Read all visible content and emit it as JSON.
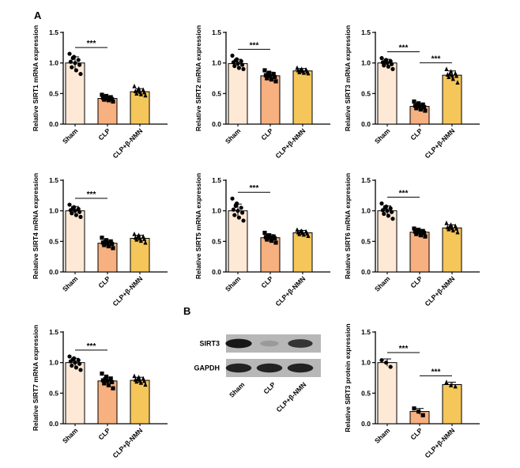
{
  "panel_labels": {
    "a": "A",
    "b": "B"
  },
  "colors": {
    "sham": "#fde9d6",
    "clp": "#f7b07f",
    "nmn": "#f5c75a",
    "axis": "#000000"
  },
  "chart_data": [
    {
      "type": "bar",
      "id": "sirt1",
      "ylabel": "Relative SIRT1 mRNA expression",
      "categories": [
        "Sham",
        "CLP",
        "CLP+β-NMN"
      ],
      "values": [
        1.0,
        0.42,
        0.53
      ],
      "errors": [
        0.1,
        0.04,
        0.05
      ],
      "ylim": [
        0,
        1.5
      ],
      "yticks": [
        "0.0",
        "0.5",
        "1.0",
        "1.5"
      ],
      "point_shapes": [
        "circle",
        "square",
        "triangle"
      ],
      "points": [
        [
          1.15,
          1.1,
          1.05,
          1.02,
          1.0,
          0.97,
          0.93,
          0.88,
          0.82,
          1.08
        ],
        [
          0.48,
          0.46,
          0.44,
          0.43,
          0.42,
          0.41,
          0.4,
          0.39,
          0.37,
          0.45
        ],
        [
          0.62,
          0.58,
          0.56,
          0.54,
          0.53,
          0.52,
          0.5,
          0.49,
          0.47,
          0.55
        ]
      ],
      "significance": [
        {
          "from": 0,
          "to": 1,
          "label": "***"
        }
      ]
    },
    {
      "type": "bar",
      "id": "sirt2",
      "ylabel": "Relative SIRT2 mRNA expression",
      "categories": [
        "Sham",
        "CLP",
        "CLP+β-NMN"
      ],
      "values": [
        0.99,
        0.79,
        0.87
      ],
      "errors": [
        0.07,
        0.06,
        0.04
      ],
      "ylim": [
        0,
        1.5
      ],
      "yticks": [
        "0.0",
        "0.5",
        "1.0",
        "1.5"
      ],
      "point_shapes": [
        "circle",
        "square",
        "triangle"
      ],
      "points": [
        [
          1.12,
          1.06,
          1.03,
          1.01,
          0.99,
          0.97,
          0.95,
          0.92,
          0.9,
          1.04
        ],
        [
          0.88,
          0.84,
          0.82,
          0.8,
          0.79,
          0.77,
          0.75,
          0.73,
          0.7,
          0.81
        ],
        [
          0.92,
          0.9,
          0.89,
          0.88,
          0.87,
          0.86,
          0.85,
          0.84,
          0.83,
          0.88
        ]
      ],
      "significance": [
        {
          "from": 0,
          "to": 1,
          "label": "***"
        }
      ]
    },
    {
      "type": "bar",
      "id": "sirt3",
      "ylabel": "Relative SIRT3 mRNA expression",
      "categories": [
        "Sham",
        "CLP",
        "CLP+β-NMN"
      ],
      "values": [
        1.0,
        0.29,
        0.8
      ],
      "errors": [
        0.06,
        0.05,
        0.07
      ],
      "ylim": [
        0,
        1.5
      ],
      "yticks": [
        "0.0",
        "0.5",
        "1.0",
        "1.5"
      ],
      "point_shapes": [
        "circle",
        "square",
        "triangle"
      ],
      "points": [
        [
          1.08,
          1.05,
          1.03,
          1.01,
          1.0,
          0.98,
          0.96,
          0.94,
          0.9,
          1.02
        ],
        [
          0.37,
          0.34,
          0.32,
          0.3,
          0.29,
          0.28,
          0.26,
          0.24,
          0.22,
          0.31
        ],
        [
          0.9,
          0.86,
          0.83,
          0.81,
          0.8,
          0.79,
          0.77,
          0.74,
          0.68,
          0.82
        ]
      ],
      "significance": [
        {
          "from": 0,
          "to": 1,
          "label": "***"
        },
        {
          "from": 1,
          "to": 2,
          "label": "***"
        }
      ]
    },
    {
      "type": "bar",
      "id": "sirt4",
      "ylabel": "Relative SIRT4 mRNA expression",
      "categories": [
        "Sham",
        "CLP",
        "CLP+β-NMN"
      ],
      "values": [
        1.0,
        0.47,
        0.55
      ],
      "errors": [
        0.07,
        0.05,
        0.05
      ],
      "ylim": [
        0,
        1.5
      ],
      "yticks": [
        "0.0",
        "0.5",
        "1.0",
        "1.5"
      ],
      "point_shapes": [
        "circle",
        "square",
        "triangle"
      ],
      "points": [
        [
          1.1,
          1.06,
          1.03,
          1.01,
          1.0,
          0.98,
          0.96,
          0.93,
          0.9,
          1.04
        ],
        [
          0.56,
          0.52,
          0.5,
          0.48,
          0.47,
          0.46,
          0.44,
          0.42,
          0.39,
          0.49
        ],
        [
          0.62,
          0.6,
          0.58,
          0.56,
          0.55,
          0.54,
          0.53,
          0.51,
          0.48,
          0.57
        ]
      ],
      "significance": [
        {
          "from": 0,
          "to": 1,
          "label": "***"
        }
      ]
    },
    {
      "type": "bar",
      "id": "sirt5",
      "ylabel": "Relative SIRT5 mRNA expression",
      "categories": [
        "Sham",
        "CLP",
        "CLP+β-NMN"
      ],
      "values": [
        1.0,
        0.56,
        0.64
      ],
      "errors": [
        0.11,
        0.05,
        0.04
      ],
      "ylim": [
        0,
        1.5
      ],
      "yticks": [
        "0.0",
        "0.5",
        "1.0",
        "1.5"
      ],
      "point_shapes": [
        "circle",
        "square",
        "triangle"
      ],
      "points": [
        [
          1.2,
          1.12,
          1.05,
          1.02,
          1.0,
          0.97,
          0.93,
          0.89,
          0.84,
          1.08
        ],
        [
          0.64,
          0.6,
          0.58,
          0.57,
          0.56,
          0.55,
          0.53,
          0.51,
          0.48,
          0.59
        ],
        [
          0.69,
          0.67,
          0.66,
          0.65,
          0.64,
          0.63,
          0.62,
          0.61,
          0.59,
          0.66
        ]
      ],
      "significance": [
        {
          "from": 0,
          "to": 1,
          "label": "***"
        }
      ]
    },
    {
      "type": "bar",
      "id": "sirt6",
      "ylabel": "Relative SIRT6 mRNA expression",
      "categories": [
        "Sham",
        "CLP",
        "CLP+β-NMN"
      ],
      "values": [
        1.0,
        0.65,
        0.72
      ],
      "errors": [
        0.08,
        0.04,
        0.05
      ],
      "ylim": [
        0,
        1.5
      ],
      "yticks": [
        "0.0",
        "0.5",
        "1.0",
        "1.5"
      ],
      "point_shapes": [
        "circle",
        "square",
        "triangle"
      ],
      "points": [
        [
          1.12,
          1.07,
          1.04,
          1.01,
          1.0,
          0.98,
          0.95,
          0.92,
          0.87,
          1.05
        ],
        [
          0.71,
          0.69,
          0.67,
          0.66,
          0.65,
          0.64,
          0.62,
          0.6,
          0.58,
          0.68
        ],
        [
          0.8,
          0.77,
          0.75,
          0.73,
          0.72,
          0.71,
          0.7,
          0.68,
          0.65,
          0.74
        ]
      ],
      "significance": [
        {
          "from": 0,
          "to": 1,
          "label": "***"
        }
      ]
    },
    {
      "type": "bar",
      "id": "sirt7",
      "ylabel": "Relative SIRT7 mRNA expression",
      "categories": [
        "Sham",
        "CLP",
        "CLP+β-NMN"
      ],
      "values": [
        1.0,
        0.7,
        0.71
      ],
      "errors": [
        0.07,
        0.06,
        0.05
      ],
      "ylim": [
        0,
        1.5
      ],
      "yticks": [
        "0.0",
        "0.5",
        "1.0",
        "1.5"
      ],
      "point_shapes": [
        "circle",
        "square",
        "triangle"
      ],
      "points": [
        [
          1.1,
          1.07,
          1.04,
          1.02,
          1.0,
          0.98,
          0.95,
          0.92,
          0.88,
          1.05
        ],
        [
          0.82,
          0.77,
          0.74,
          0.71,
          0.7,
          0.68,
          0.66,
          0.63,
          0.58,
          0.73
        ],
        [
          0.78,
          0.76,
          0.74,
          0.72,
          0.71,
          0.7,
          0.69,
          0.67,
          0.64,
          0.73
        ]
      ],
      "significance": [
        {
          "from": 0,
          "to": 1,
          "label": "***"
        }
      ]
    },
    {
      "type": "bar",
      "id": "sirt3_protein",
      "ylabel": "Relative SIRT3 protein expression",
      "categories": [
        "Sham",
        "CLP",
        "CLP+β-NMN"
      ],
      "values": [
        1.0,
        0.2,
        0.64
      ],
      "errors": [
        0.06,
        0.05,
        0.04
      ],
      "ylim": [
        0,
        1.5
      ],
      "yticks": [
        "0.0",
        "0.5",
        "1.0",
        "1.5"
      ],
      "point_shapes": [
        "circle",
        "square",
        "triangle"
      ],
      "points": [
        [
          1.04,
          1.0,
          0.93
        ],
        [
          0.25,
          0.2,
          0.14
        ],
        [
          0.68,
          0.63,
          0.61
        ]
      ],
      "significance": [
        {
          "from": 0,
          "to": 1,
          "label": "***"
        },
        {
          "from": 1,
          "to": 2,
          "label": "***"
        }
      ]
    }
  ],
  "western_blot": {
    "rows": [
      {
        "label": "SIRT3",
        "intensities": [
          0.95,
          0.25,
          0.8
        ]
      },
      {
        "label": "GAPDH",
        "intensities": [
          0.9,
          0.9,
          0.9
        ]
      }
    ],
    "lanes": [
      "Sham",
      "CLP",
      "CLP+β-NMN"
    ]
  }
}
